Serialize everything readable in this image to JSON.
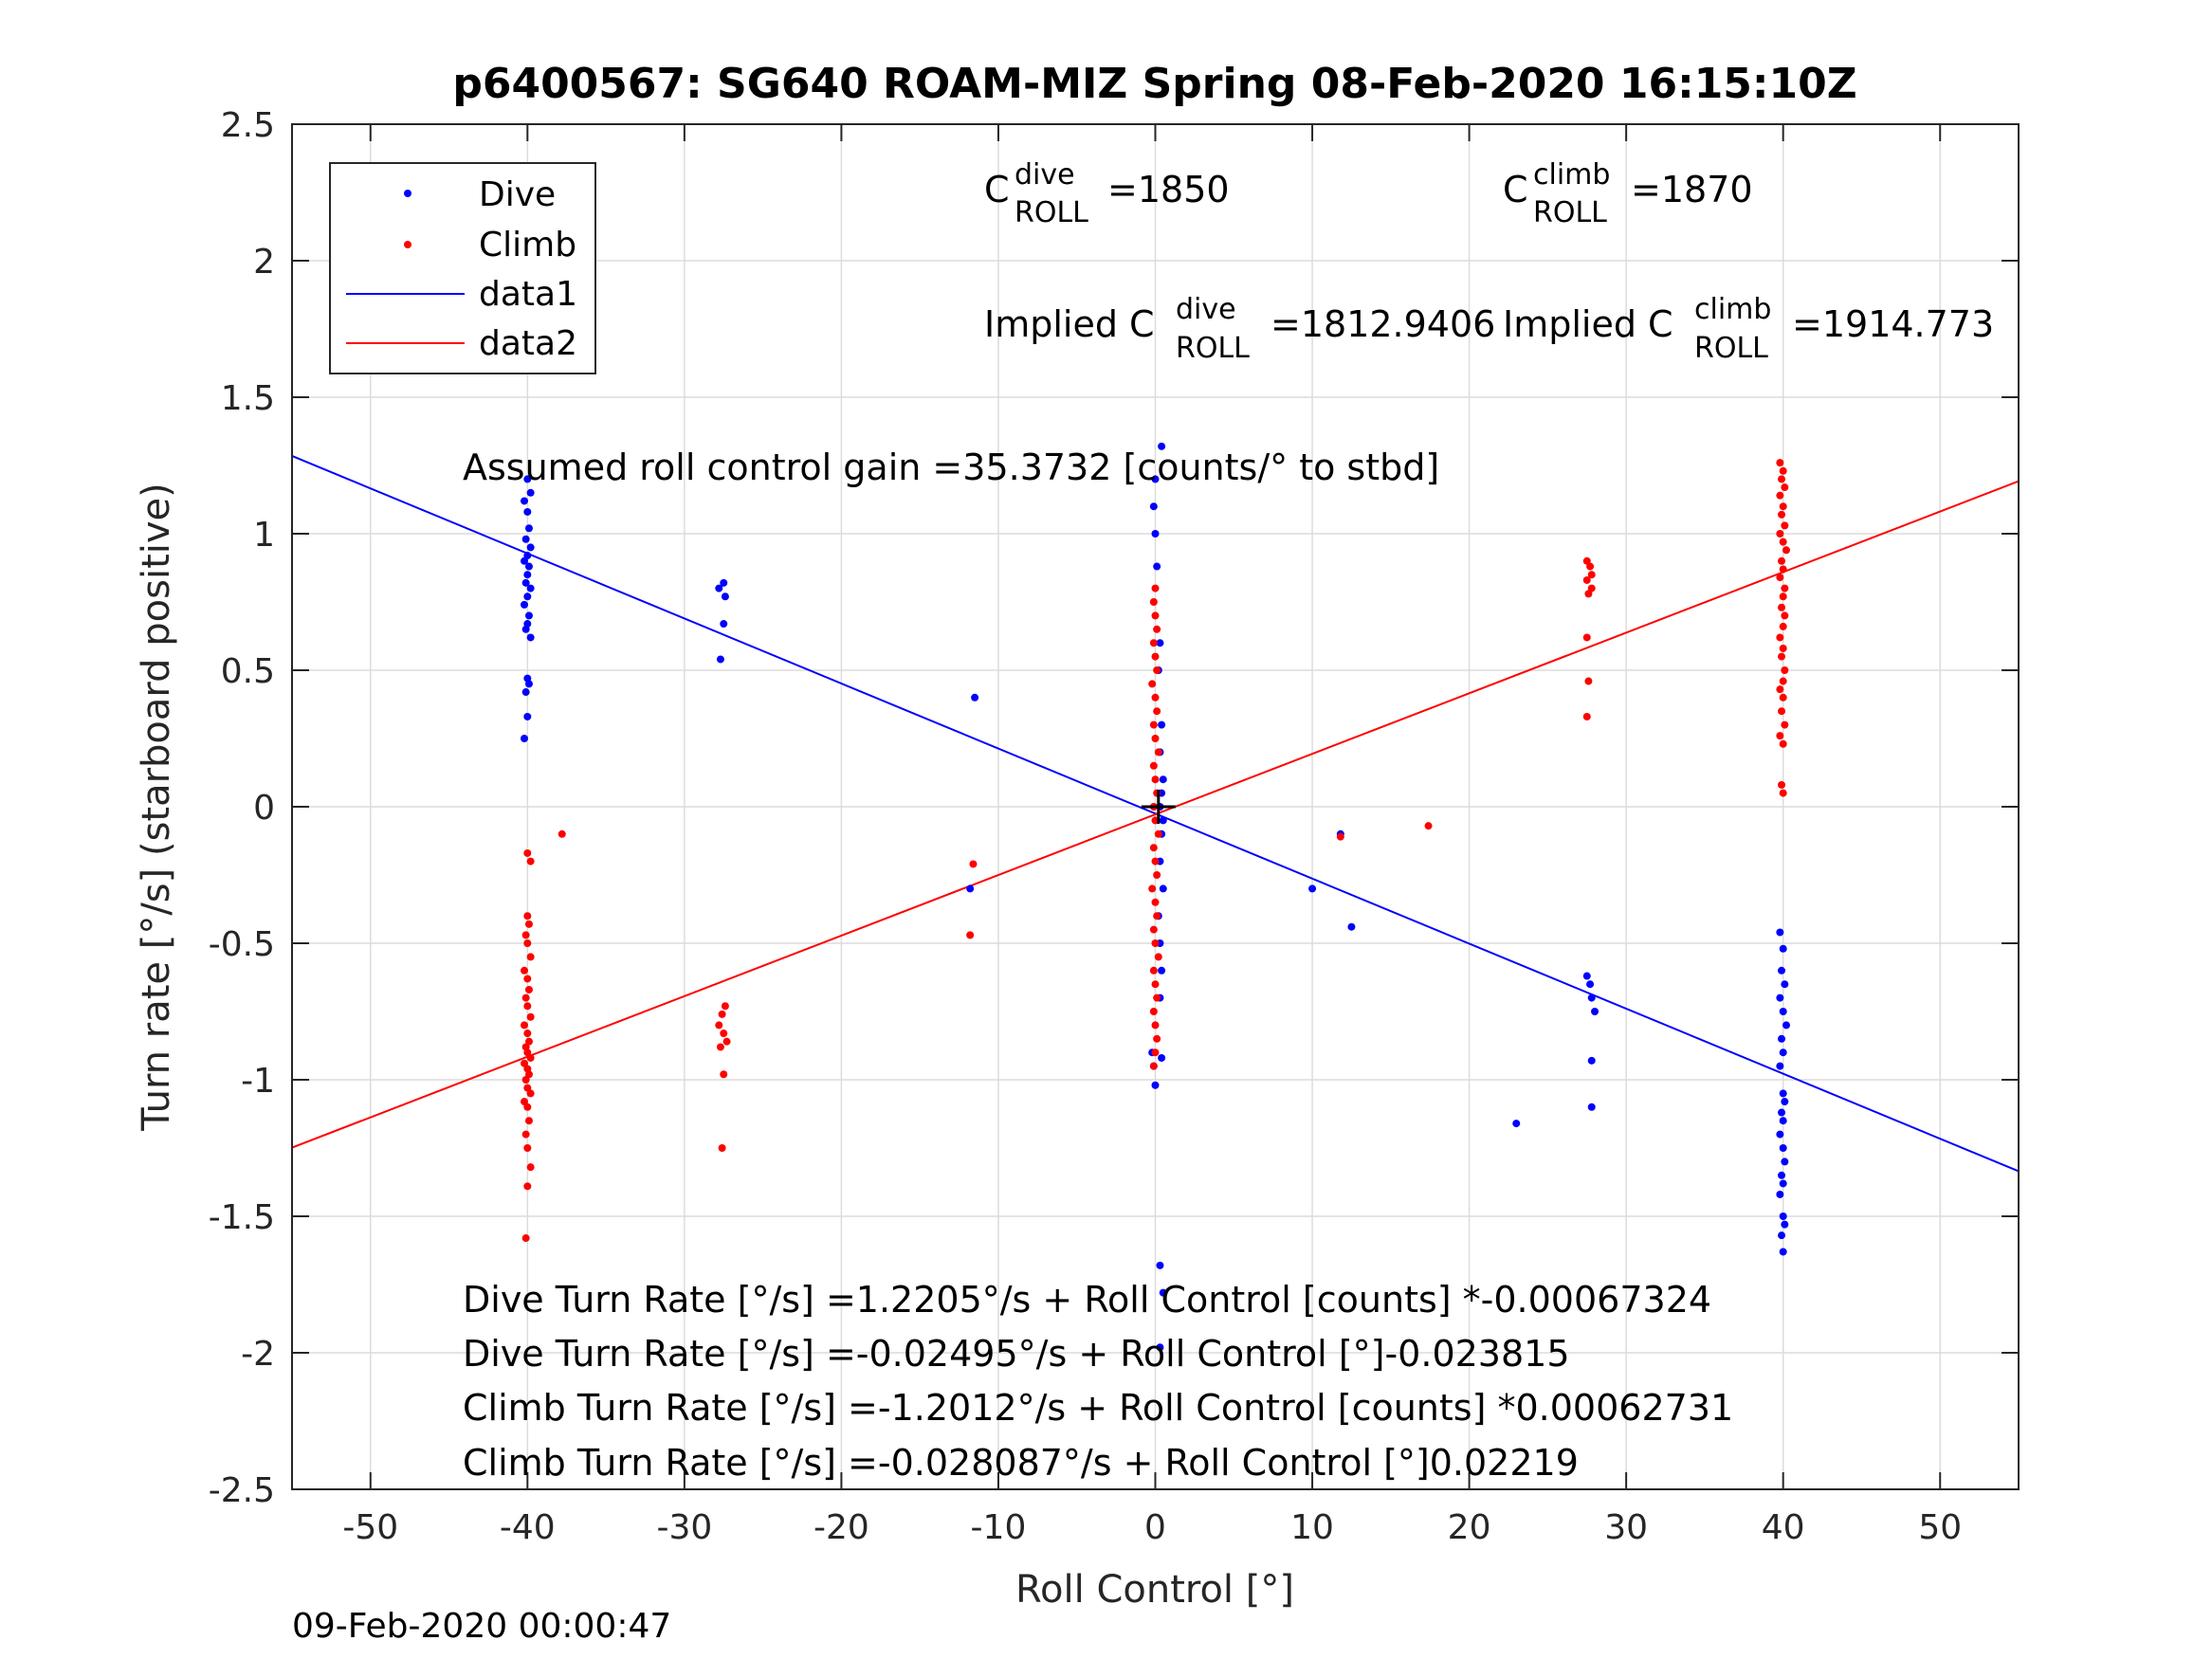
{
  "chart_data": {
    "type": "scatter",
    "title": "p6400567: SG640 ROAM-MIZ Spring 08-Feb-2020 16:15:10Z",
    "xlabel": "Roll Control [°]",
    "ylabel": "Turn rate [°/s] (starboard positive)",
    "xlim": [
      -55,
      55
    ],
    "ylim": [
      -2.5,
      2.5
    ],
    "xticks": [
      -50,
      -40,
      -30,
      -20,
      -10,
      0,
      10,
      20,
      30,
      40,
      50
    ],
    "xtick_labels": [
      "-50",
      "-40",
      "-30",
      "-20",
      "-10",
      "0",
      "10",
      "20",
      "30",
      "40",
      "50"
    ],
    "yticks": [
      -2.5,
      -2,
      -1.5,
      -1,
      -0.5,
      0,
      0.5,
      1,
      1.5,
      2,
      2.5
    ],
    "ytick_labels": [
      "-2.5",
      "-2",
      "-1.5",
      "-1",
      "-0.5",
      "0",
      "0.5",
      "1",
      "1.5",
      "2",
      "2.5"
    ],
    "grid": true,
    "legend_position": "top-left",
    "legend": [
      {
        "label": "Dive",
        "marker": "dot",
        "color": "#0000ff"
      },
      {
        "label": "Climb",
        "marker": "dot",
        "color": "#ff0000"
      },
      {
        "label": "data1",
        "marker": "line",
        "color": "#0000ff"
      },
      {
        "label": "data2",
        "marker": "line",
        "color": "#ff0000"
      }
    ],
    "series": [
      {
        "name": "Dive",
        "color": "#0000ff",
        "points": [
          [
            -40,
            1.2
          ],
          [
            -39.8,
            1.15
          ],
          [
            -40.2,
            1.12
          ],
          [
            -40,
            1.08
          ],
          [
            -39.9,
            1.02
          ],
          [
            -40.1,
            0.98
          ],
          [
            -39.8,
            0.95
          ],
          [
            -40,
            0.92
          ],
          [
            -40.2,
            0.9
          ],
          [
            -39.9,
            0.88
          ],
          [
            -40,
            0.85
          ],
          [
            -40.1,
            0.82
          ],
          [
            -39.8,
            0.8
          ],
          [
            -40,
            0.77
          ],
          [
            -40.2,
            0.74
          ],
          [
            -39.9,
            0.7
          ],
          [
            -40,
            0.67
          ],
          [
            -40.1,
            0.65
          ],
          [
            -39.8,
            0.62
          ],
          [
            -40,
            0.47
          ],
          [
            -39.9,
            0.45
          ],
          [
            -40.1,
            0.42
          ],
          [
            -40,
            0.33
          ],
          [
            -40.2,
            0.25
          ],
          [
            -27.8,
            0.8
          ],
          [
            -27.5,
            0.82
          ],
          [
            -27.4,
            0.77
          ],
          [
            -27.5,
            0.67
          ],
          [
            -27.7,
            0.54
          ],
          [
            -11.5,
            0.4
          ],
          [
            -11.8,
            -0.3
          ],
          [
            0.4,
            1.32
          ],
          [
            0,
            1.2
          ],
          [
            -0.1,
            1.1
          ],
          [
            0,
            1.0
          ],
          [
            0.1,
            0.88
          ],
          [
            0.3,
            0.6
          ],
          [
            0.2,
            0.5
          ],
          [
            0.4,
            0.3
          ],
          [
            0.3,
            0.2
          ],
          [
            0.5,
            0.1
          ],
          [
            0.4,
            0.05
          ],
          [
            0.3,
            0.0
          ],
          [
            0.5,
            -0.05
          ],
          [
            0.4,
            -0.1
          ],
          [
            0.3,
            -0.2
          ],
          [
            0.5,
            -0.3
          ],
          [
            0.2,
            -0.4
          ],
          [
            0.3,
            -0.5
          ],
          [
            0.4,
            -0.6
          ],
          [
            0.3,
            -0.7
          ],
          [
            -0.2,
            -0.9
          ],
          [
            -0.1,
            -0.95
          ],
          [
            0,
            -1.02
          ],
          [
            0.4,
            -0.92
          ],
          [
            0.3,
            -1.68
          ],
          [
            0.5,
            -1.78
          ],
          [
            0.3,
            -1.98
          ],
          [
            10,
            -0.3
          ],
          [
            12.5,
            -0.44
          ],
          [
            11.8,
            -0.1
          ],
          [
            23,
            -1.16
          ],
          [
            27.5,
            -0.62
          ],
          [
            27.7,
            -0.65
          ],
          [
            27.8,
            -0.7
          ],
          [
            28,
            -0.75
          ],
          [
            27.8,
            -0.93
          ],
          [
            27.8,
            -1.1
          ],
          [
            39.8,
            -0.46
          ],
          [
            40,
            -0.52
          ],
          [
            39.9,
            -0.6
          ],
          [
            40.1,
            -0.65
          ],
          [
            39.8,
            -0.7
          ],
          [
            40,
            -0.75
          ],
          [
            40.2,
            -0.8
          ],
          [
            39.9,
            -0.85
          ],
          [
            40,
            -0.9
          ],
          [
            39.8,
            -0.95
          ],
          [
            40,
            -1.05
          ],
          [
            40.1,
            -1.08
          ],
          [
            39.9,
            -1.12
          ],
          [
            40,
            -1.15
          ],
          [
            39.8,
            -1.2
          ],
          [
            40,
            -1.25
          ],
          [
            40.1,
            -1.3
          ],
          [
            39.9,
            -1.35
          ],
          [
            40,
            -1.38
          ],
          [
            39.8,
            -1.42
          ],
          [
            40,
            -1.5
          ],
          [
            40.1,
            -1.53
          ],
          [
            39.9,
            -1.57
          ],
          [
            40,
            -1.63
          ]
        ]
      },
      {
        "name": "Climb",
        "color": "#ff0000",
        "points": [
          [
            -40,
            -0.17
          ],
          [
            -39.8,
            -0.2
          ],
          [
            -37.8,
            -0.1
          ],
          [
            -40,
            -0.4
          ],
          [
            -39.9,
            -0.43
          ],
          [
            -40.1,
            -0.47
          ],
          [
            -40,
            -0.5
          ],
          [
            -39.8,
            -0.55
          ],
          [
            -40.2,
            -0.6
          ],
          [
            -40,
            -0.63
          ],
          [
            -39.9,
            -0.67
          ],
          [
            -40.1,
            -0.7
          ],
          [
            -40,
            -0.73
          ],
          [
            -39.8,
            -0.77
          ],
          [
            -40.2,
            -0.8
          ],
          [
            -40,
            -0.83
          ],
          [
            -39.9,
            -0.86
          ],
          [
            -40.1,
            -0.88
          ],
          [
            -40,
            -0.9
          ],
          [
            -39.8,
            -0.92
          ],
          [
            -40.2,
            -0.94
          ],
          [
            -40,
            -0.96
          ],
          [
            -39.9,
            -0.98
          ],
          [
            -40.1,
            -1.0
          ],
          [
            -40,
            -1.03
          ],
          [
            -39.8,
            -1.05
          ],
          [
            -40.2,
            -1.08
          ],
          [
            -40,
            -1.1
          ],
          [
            -39.9,
            -1.15
          ],
          [
            -40.1,
            -1.2
          ],
          [
            -40,
            -1.25
          ],
          [
            -39.8,
            -1.32
          ],
          [
            -40,
            -1.39
          ],
          [
            -40.1,
            -1.58
          ],
          [
            -27.4,
            -0.73
          ],
          [
            -27.6,
            -0.76
          ],
          [
            -27.8,
            -0.8
          ],
          [
            -27.5,
            -0.83
          ],
          [
            -27.3,
            -0.86
          ],
          [
            -27.7,
            -0.88
          ],
          [
            -27.5,
            -0.98
          ],
          [
            -27.6,
            -1.25
          ],
          [
            -11.6,
            -0.21
          ],
          [
            -11.8,
            -0.47
          ],
          [
            0,
            0.8
          ],
          [
            -0.1,
            0.75
          ],
          [
            0,
            0.7
          ],
          [
            0.1,
            0.65
          ],
          [
            -0.1,
            0.6
          ],
          [
            0,
            0.55
          ],
          [
            0.1,
            0.5
          ],
          [
            -0.2,
            0.45
          ],
          [
            0,
            0.4
          ],
          [
            0.1,
            0.35
          ],
          [
            -0.1,
            0.3
          ],
          [
            0,
            0.25
          ],
          [
            0.2,
            0.2
          ],
          [
            -0.1,
            0.15
          ],
          [
            0,
            0.1
          ],
          [
            0.1,
            0.05
          ],
          [
            -0.1,
            0.0
          ],
          [
            0,
            -0.05
          ],
          [
            0.2,
            -0.1
          ],
          [
            -0.1,
            -0.15
          ],
          [
            0,
            -0.2
          ],
          [
            0.1,
            -0.25
          ],
          [
            -0.2,
            -0.3
          ],
          [
            0,
            -0.35
          ],
          [
            0.1,
            -0.4
          ],
          [
            -0.1,
            -0.45
          ],
          [
            0,
            -0.5
          ],
          [
            0.2,
            -0.55
          ],
          [
            -0.1,
            -0.6
          ],
          [
            0,
            -0.65
          ],
          [
            0.1,
            -0.7
          ],
          [
            -0.1,
            -0.75
          ],
          [
            0,
            -0.8
          ],
          [
            0.1,
            -0.85
          ],
          [
            0,
            -0.9
          ],
          [
            -0.1,
            -0.95
          ],
          [
            11.8,
            -0.11
          ],
          [
            17.4,
            -0.07
          ],
          [
            27.5,
            0.9
          ],
          [
            27.7,
            0.88
          ],
          [
            27.8,
            0.85
          ],
          [
            27.5,
            0.83
          ],
          [
            27.8,
            0.8
          ],
          [
            27.6,
            0.78
          ],
          [
            27.5,
            0.62
          ],
          [
            27.6,
            0.46
          ],
          [
            27.5,
            0.33
          ],
          [
            39.8,
            1.26
          ],
          [
            40,
            1.23
          ],
          [
            39.9,
            1.2
          ],
          [
            40.1,
            1.17
          ],
          [
            39.8,
            1.14
          ],
          [
            40,
            1.1
          ],
          [
            39.9,
            1.07
          ],
          [
            40.1,
            1.03
          ],
          [
            39.8,
            1.0
          ],
          [
            40,
            0.97
          ],
          [
            40.2,
            0.94
          ],
          [
            39.9,
            0.9
          ],
          [
            40,
            0.87
          ],
          [
            39.8,
            0.84
          ],
          [
            40.1,
            0.8
          ],
          [
            40,
            0.77
          ],
          [
            39.9,
            0.73
          ],
          [
            40.1,
            0.7
          ],
          [
            40,
            0.66
          ],
          [
            39.8,
            0.62
          ],
          [
            40,
            0.58
          ],
          [
            39.9,
            0.55
          ],
          [
            40.1,
            0.5
          ],
          [
            40,
            0.46
          ],
          [
            39.8,
            0.43
          ],
          [
            40,
            0.4
          ],
          [
            39.9,
            0.35
          ],
          [
            40.1,
            0.3
          ],
          [
            39.8,
            0.26
          ],
          [
            40,
            0.23
          ],
          [
            39.9,
            0.08
          ],
          [
            40,
            0.05
          ]
        ]
      },
      {
        "name": "data1",
        "type": "line",
        "color": "#0000ff",
        "points": [
          [
            -55,
            1.285
          ],
          [
            55,
            -1.335
          ]
        ]
      },
      {
        "name": "data2",
        "type": "line",
        "color": "#ff0000",
        "points": [
          [
            -55,
            -1.2485
          ],
          [
            55,
            1.1923
          ]
        ]
      }
    ],
    "crosshair": [
      0.2,
      0
    ],
    "annotations": {
      "c_dive": {
        "prefix": "C",
        "sup": "dive",
        "sub": "ROLL",
        "value": "=1850"
      },
      "c_climb": {
        "prefix": "C",
        "sup": "climb",
        "sub": "ROLL",
        "value": "=1870"
      },
      "implied_dive": {
        "prefix": "Implied C",
        "sup": "dive",
        "sub": "ROLL",
        "value": "=1812.9406"
      },
      "implied_climb": {
        "prefix": "Implied C",
        "sup": "climb",
        "sub": "ROLL",
        "value": "=1914.773"
      },
      "gain": "Assumed roll control gain =35.3732 [counts/° to stbd]",
      "equations": [
        "Dive Turn Rate [°/s] =1.2205°/s + Roll Control [counts] *-0.00067324",
        "Dive Turn Rate [°/s] =-0.02495°/s + Roll Control [°]-0.023815",
        "Climb Turn Rate [°/s] =-1.2012°/s + Roll Control [counts] *0.00062731",
        "Climb Turn Rate [°/s] =-0.028087°/s + Roll Control [°]0.02219"
      ]
    },
    "footer_timestamp": "09-Feb-2020 00:00:47"
  }
}
